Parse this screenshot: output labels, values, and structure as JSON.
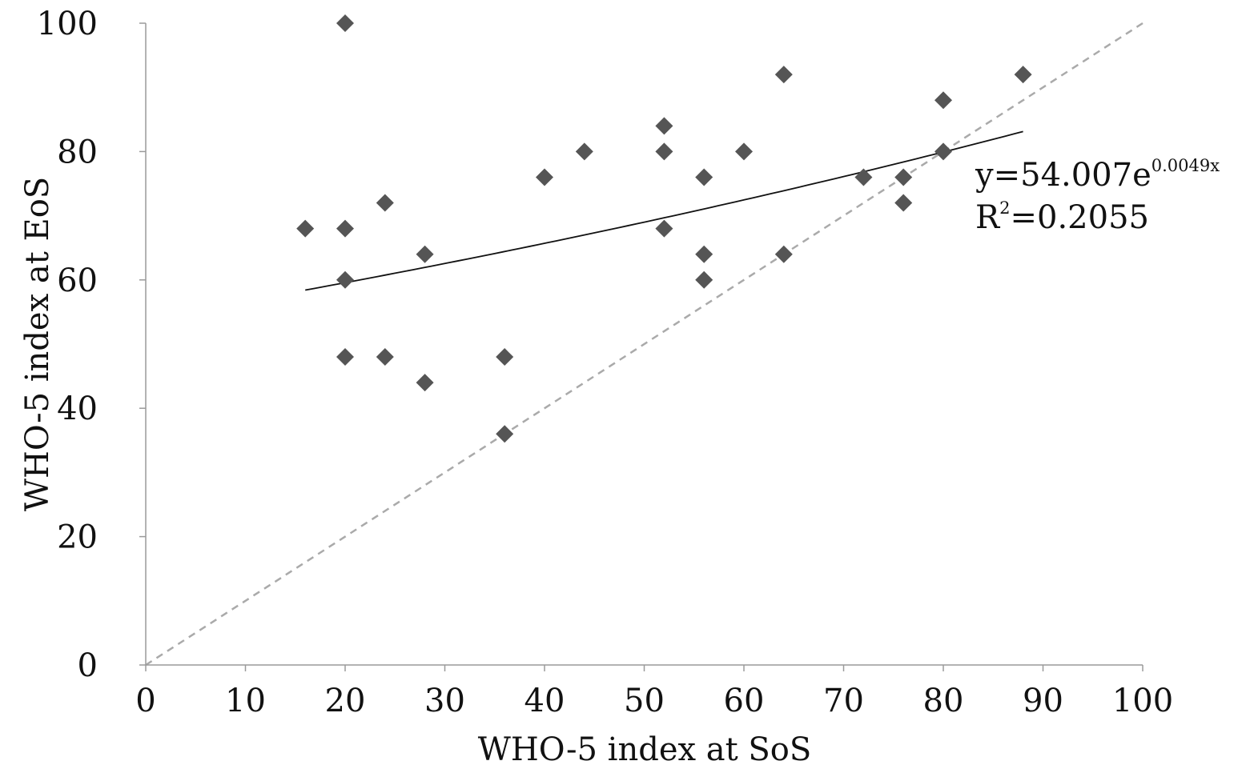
{
  "chart_data": {
    "type": "scatter",
    "xlabel": "WHO-5 index at SoS",
    "ylabel": "WHO-5 index at EoS",
    "xlim": [
      0,
      100
    ],
    "ylim": [
      0,
      100
    ],
    "x_ticks": [
      "0",
      "10",
      "20",
      "30",
      "40",
      "50",
      "60",
      "70",
      "80",
      "90",
      "100"
    ],
    "y_ticks": [
      "0",
      "20",
      "40",
      "60",
      "80",
      "100"
    ],
    "grid": false,
    "marker": "diamond",
    "marker_color": "#555555",
    "points": [
      {
        "x": 16,
        "y": 68
      },
      {
        "x": 20,
        "y": 100
      },
      {
        "x": 20,
        "y": 68
      },
      {
        "x": 20,
        "y": 60
      },
      {
        "x": 20,
        "y": 48
      },
      {
        "x": 24,
        "y": 72
      },
      {
        "x": 24,
        "y": 48
      },
      {
        "x": 28,
        "y": 64
      },
      {
        "x": 28,
        "y": 44
      },
      {
        "x": 36,
        "y": 48
      },
      {
        "x": 36,
        "y": 36
      },
      {
        "x": 40,
        "y": 76
      },
      {
        "x": 44,
        "y": 80
      },
      {
        "x": 52,
        "y": 84
      },
      {
        "x": 52,
        "y": 80
      },
      {
        "x": 52,
        "y": 68
      },
      {
        "x": 56,
        "y": 76
      },
      {
        "x": 56,
        "y": 64
      },
      {
        "x": 56,
        "y": 60
      },
      {
        "x": 60,
        "y": 80
      },
      {
        "x": 64,
        "y": 92
      },
      {
        "x": 64,
        "y": 64
      },
      {
        "x": 72,
        "y": 76
      },
      {
        "x": 76,
        "y": 76
      },
      {
        "x": 76,
        "y": 72
      },
      {
        "x": 80,
        "y": 88
      },
      {
        "x": 80,
        "y": 80
      },
      {
        "x": 88,
        "y": 92
      }
    ],
    "trendline": {
      "kind": "exponential",
      "a": 54.007,
      "b": 0.0049,
      "x_range": [
        16,
        88
      ],
      "color": "#111111"
    },
    "reference_line": {
      "kind": "identity",
      "from": [
        0,
        0
      ],
      "to": [
        100,
        100
      ],
      "style": "dashed",
      "color": "#aaaaaa"
    },
    "annotation": {
      "equation_base": "y=54.007e",
      "equation_exponent": "0.0049x",
      "r2_label": "R",
      "r2_power": "2",
      "r2_value": "=0.2055"
    }
  }
}
